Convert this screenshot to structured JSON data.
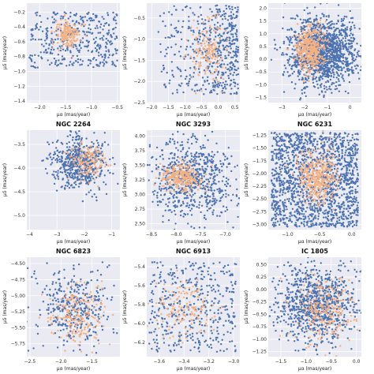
{
  "figure": {
    "colors": {
      "background": "#eaeaf2",
      "grid": "#ffffff",
      "members": "#4c72b0",
      "nonmembers": "#f4b183"
    },
    "axis_label_mu_alpha": "μα (mas/year)",
    "axis_label_mu_delta": "μδ (mas/year)"
  },
  "chart_data": [
    {
      "type": "scatter",
      "title": "",
      "xlabel": "μα (mas/year)",
      "ylabel": "μδ (mas/year)",
      "xlim": [
        -2.25,
        -0.45
      ],
      "ylim": [
        -1.42,
        -0.08
      ],
      "xticks": [
        -2.0,
        -1.5,
        -1.0,
        -0.5
      ],
      "xtick_labels": [
        "−2.0",
        "−1.5",
        "−1.0",
        "−0.5"
      ],
      "yticks": [
        -1.4,
        -1.2,
        -1.0,
        -0.8,
        -0.6,
        -0.4,
        -0.2
      ],
      "ytick_labels": [
        "−1.4",
        "−1.2",
        "−1.0",
        "−0.8",
        "−0.6",
        "−0.4",
        "−0.2"
      ],
      "grid": true,
      "series": [
        {
          "color": "#4c72b0",
          "spread": [
            -2.2,
            -0.5,
            -0.95,
            -0.2
          ],
          "count": 380,
          "seed": 11
        },
        {
          "color": "#f4b183",
          "center": [
            -1.45,
            -0.5
          ],
          "sd": [
            0.12,
            0.1
          ],
          "count": 170,
          "seed": 12
        }
      ]
    },
    {
      "type": "scatter",
      "title": "",
      "xlabel": "μα (mas/year)",
      "ylabel": "μδ (mas/year)",
      "xlim": [
        -2.15,
        0.65
      ],
      "ylim": [
        -2.5,
        -0.15
      ],
      "xticks": [
        -2.0,
        -1.5,
        -1.0,
        -0.5,
        0.0,
        0.5
      ],
      "xtick_labels": [
        "−2.0",
        "−1.5",
        "−1.0",
        "−0.5",
        "0.0",
        "0.5"
      ],
      "yticks": [
        -2.5,
        -2.0,
        -1.5,
        -1.0,
        -0.5
      ],
      "ytick_labels": [
        "−2.5",
        "−2.0",
        "−1.5",
        "−1.0",
        "−0.5"
      ],
      "grid": true,
      "series": [
        {
          "color": "#4c72b0",
          "spread": [
            -1.8,
            0.6,
            -2.3,
            -0.2
          ],
          "count": 520,
          "seed": 21,
          "skew": 0.6
        },
        {
          "color": "#f4b183",
          "center": [
            -0.3,
            -1.3
          ],
          "sd": [
            0.25,
            0.35
          ],
          "count": 160,
          "seed": 22
        }
      ]
    },
    {
      "type": "scatter",
      "title": "",
      "xlabel": "μα (mas/year)",
      "ylabel": "μδ (mas/year)",
      "xlim": [
        -3.6,
        0.5
      ],
      "ylim": [
        -1.7,
        2.2
      ],
      "xticks": [
        -3,
        -2,
        -1,
        0
      ],
      "xtick_labels": [
        "−3",
        "−2",
        "−1",
        "0"
      ],
      "yticks": [
        -1.5,
        -1.0,
        -0.5,
        0.0,
        0.5,
        1.0,
        1.5,
        2.0
      ],
      "ytick_labels": [
        "−1.5",
        "−1.0",
        "−0.5",
        "0.0",
        "0.5",
        "1.0",
        "1.5",
        "2.0"
      ],
      "grid": true,
      "series": [
        {
          "color": "#4c72b0",
          "center": [
            -1.2,
            0.3
          ],
          "sd": [
            0.75,
            0.65
          ],
          "count": 1400,
          "seed": 31
        },
        {
          "color": "#f4b183",
          "center": [
            -1.8,
            0.4
          ],
          "sd": [
            0.35,
            0.45
          ],
          "count": 420,
          "seed": 32
        }
      ]
    },
    {
      "type": "scatter",
      "title": "NGC 2264",
      "xlabel": "μα (mas/year)",
      "ylabel": "μδ (mas/year)",
      "xlim": [
        -4.1,
        -0.7
      ],
      "ylim": [
        -5.3,
        -3.2
      ],
      "xticks": [
        -4,
        -3,
        -2,
        -1
      ],
      "xtick_labels": [
        "−4",
        "−3",
        "−2",
        "−1"
      ],
      "yticks": [
        -5.0,
        -4.5,
        -4.0,
        -3.5
      ],
      "ytick_labels": [
        "−5.0",
        "−4.5",
        "−4.0",
        "−3.5"
      ],
      "grid": true,
      "series": [
        {
          "color": "#4c72b0",
          "center": [
            -2.2,
            -3.9
          ],
          "sd": [
            0.5,
            0.28
          ],
          "count": 560,
          "seed": 41
        },
        {
          "color": "#f4b183",
          "center": [
            -1.9,
            -3.85
          ],
          "sd": [
            0.35,
            0.2
          ],
          "count": 150,
          "seed": 42
        }
      ]
    },
    {
      "type": "scatter",
      "title": "NGC 3293",
      "xlabel": "μα (mas/year)",
      "ylabel": "μδ (mas/year)",
      "xlim": [
        -8.6,
        -6.7
      ],
      "ylim": [
        2.4,
        4.1
      ],
      "xticks": [
        -8.5,
        -8.0,
        -7.5,
        -7.0
      ],
      "xtick_labels": [
        "−8.5",
        "−8.0",
        "−7.5",
        "−7.0"
      ],
      "yticks": [
        2.5,
        2.75,
        3.0,
        3.25,
        3.5,
        3.75,
        4.0
      ],
      "ytick_labels": [
        "2.50",
        "2.75",
        "3.00",
        "3.25",
        "3.50",
        "3.75",
        "4.00"
      ],
      "grid": true,
      "series": [
        {
          "color": "#4c72b0",
          "center": [
            -7.65,
            3.25
          ],
          "sd": [
            0.45,
            0.35
          ],
          "count": 700,
          "seed": 51
        },
        {
          "color": "#f4b183",
          "center": [
            -7.9,
            3.3
          ],
          "sd": [
            0.2,
            0.12
          ],
          "count": 260,
          "seed": 52
        }
      ]
    },
    {
      "type": "scatter",
      "title": "NGC 6231",
      "xlabel": "μα (mas/year)",
      "ylabel": "μδ (mas/year)",
      "xlim": [
        -1.3,
        0.15
      ],
      "ylim": [
        -3.1,
        -1.15
      ],
      "xticks": [
        -1.0,
        -0.5,
        0.0
      ],
      "xtick_labels": [
        "−1.0",
        "−0.5",
        "0.0"
      ],
      "yticks": [
        -3.0,
        -2.75,
        -2.5,
        -2.25,
        -2.0,
        -1.75,
        -1.5,
        -1.25
      ],
      "ytick_labels": [
        "−3.00",
        "−2.75",
        "−2.50",
        "−2.25",
        "−2.00",
        "−1.75",
        "−1.50",
        "−1.25"
      ],
      "grid": true,
      "series": [
        {
          "color": "#4c72b0",
          "spread": [
            -1.25,
            0.1,
            -3.05,
            -1.2
          ],
          "count": 1500,
          "seed": 61
        },
        {
          "color": "#f4b183",
          "center": [
            -0.55,
            -2.05
          ],
          "sd": [
            0.15,
            0.25
          ],
          "count": 380,
          "seed": 62
        }
      ]
    },
    {
      "type": "scatter",
      "title": "NGC 6823",
      "xlabel": "μα (mas/year)",
      "ylabel": "μδ (mas/year)",
      "xlim": [
        -2.55,
        -1.05
      ],
      "ylim": [
        -5.95,
        -4.4
      ],
      "xticks": [
        -2.5,
        -2.0,
        -1.5
      ],
      "xtick_labels": [
        "−2.5",
        "−2.0",
        "−1.5"
      ],
      "yticks": [
        -5.75,
        -5.5,
        -5.25,
        -5.0,
        -4.75,
        -4.5
      ],
      "ytick_labels": [
        "−5.75",
        "−5.50",
        "−5.25",
        "−5.00",
        "−4.75",
        "−4.50"
      ],
      "grid": true,
      "series": [
        {
          "color": "#4c72b0",
          "center": [
            -1.8,
            -5.2
          ],
          "sd": [
            0.3,
            0.3
          ],
          "count": 380,
          "seed": 71
        },
        {
          "color": "#f4b183",
          "center": [
            -1.75,
            -5.3
          ],
          "sd": [
            0.22,
            0.22
          ],
          "count": 200,
          "seed": 72
        }
      ]
    },
    {
      "type": "scatter",
      "title": "NGC 6913",
      "xlabel": "μα (mas/year)",
      "ylabel": "μδ (mas/year)",
      "xlim": [
        -3.7,
        -2.95
      ],
      "ylim": [
        -6.35,
        -5.3
      ],
      "xticks": [
        -3.6,
        -3.4,
        -3.2,
        -3.0
      ],
      "xtick_labels": [
        "−3.6",
        "−3.4",
        "−3.2",
        "−3.0"
      ],
      "yticks": [
        -6.2,
        -6.0,
        -5.8,
        -5.6,
        -5.4
      ],
      "ytick_labels": [
        "−6.2",
        "−6.0",
        "−5.8",
        "−5.6",
        "−5.4"
      ],
      "grid": true,
      "series": [
        {
          "color": "#4c72b0",
          "spread": [
            -3.68,
            -2.98,
            -6.3,
            -5.35
          ],
          "count": 420,
          "seed": 81
        },
        {
          "color": "#f4b183",
          "center": [
            -3.4,
            -5.85
          ],
          "sd": [
            0.12,
            0.15
          ],
          "count": 150,
          "seed": 82
        }
      ]
    },
    {
      "type": "scatter",
      "title": "IC 1805",
      "xlabel": "μα (mas/year)",
      "ylabel": "μδ (mas/year)",
      "xlim": [
        -1.75,
        0.1
      ],
      "ylim": [
        -1.35,
        0.65
      ],
      "xticks": [
        -1.5,
        -1.0,
        -0.5,
        0.0
      ],
      "xtick_labels": [
        "−1.5",
        "−1.0",
        "−0.5",
        "0.0"
      ],
      "yticks": [
        -1.25,
        -1.0,
        -0.75,
        -0.5,
        -0.25,
        0.0,
        0.25,
        0.5
      ],
      "ytick_labels": [
        "−1.25",
        "−1.00",
        "−0.75",
        "−0.50",
        "−0.25",
        "0.00",
        "0.25",
        "0.50"
      ],
      "grid": true,
      "series": [
        {
          "color": "#4c72b0",
          "center": [
            -0.8,
            -0.3
          ],
          "sd": [
            0.4,
            0.4
          ],
          "count": 900,
          "seed": 91
        },
        {
          "color": "#f4b183",
          "center": [
            -0.6,
            -0.45
          ],
          "sd": [
            0.3,
            0.3
          ],
          "count": 260,
          "seed": 92
        }
      ]
    }
  ]
}
